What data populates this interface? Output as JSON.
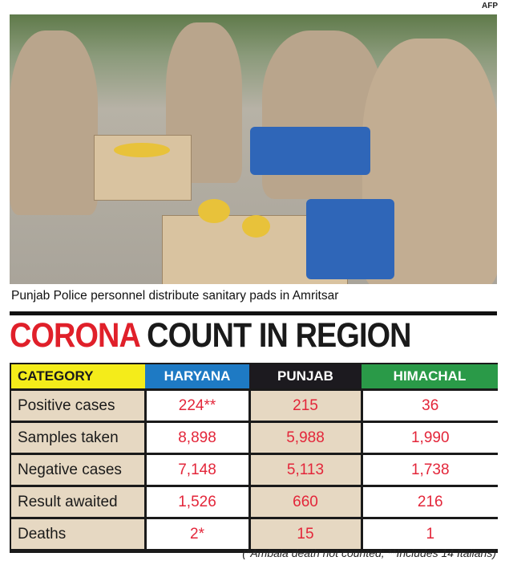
{
  "photo": {
    "credit": "AFP",
    "caption": "Punjab Police personnel distribute sanitary pads in Amritsar"
  },
  "headline": {
    "part1": "CORONA",
    "part2": "COUNT IN REGION"
  },
  "table": {
    "headers": [
      "CATEGORY",
      "HARYANA",
      "PUNJAB",
      "HIMACHAL"
    ],
    "header_colors": [
      "#f4ec1a",
      "#1e7ac4",
      "#1c1a1f",
      "#2a9a48"
    ],
    "rows": [
      {
        "label": "Positive cases",
        "haryana": "224**",
        "punjab": "215",
        "himachal": "36"
      },
      {
        "label": "Samples taken",
        "haryana": "8,898",
        "punjab": "5,988",
        "himachal": "1,990"
      },
      {
        "label": "Negative cases",
        "haryana": "7,148",
        "punjab": "5,113",
        "himachal": "1,738"
      },
      {
        "label": "Result awaited",
        "haryana": "1,526",
        "punjab": "660",
        "himachal": "216"
      },
      {
        "label": "Deaths",
        "haryana": "2*",
        "punjab": "15",
        "himachal": "1"
      }
    ]
  },
  "footnote": "(*Ambala death not counted; **Includes 14 Italians)"
}
